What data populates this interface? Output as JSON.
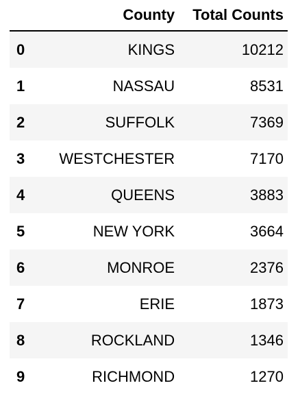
{
  "table": {
    "headers": {
      "index": "",
      "county": "County",
      "total": "Total Counts"
    },
    "rows": [
      {
        "index": "0",
        "county": "KINGS",
        "total": "10212"
      },
      {
        "index": "1",
        "county": "NASSAU",
        "total": "8531"
      },
      {
        "index": "2",
        "county": "SUFFOLK",
        "total": "7369"
      },
      {
        "index": "3",
        "county": "WESTCHESTER",
        "total": "7170"
      },
      {
        "index": "4",
        "county": "QUEENS",
        "total": "3883"
      },
      {
        "index": "5",
        "county": "NEW YORK",
        "total": "3664"
      },
      {
        "index": "6",
        "county": "MONROE",
        "total": "2376"
      },
      {
        "index": "7",
        "county": "ERIE",
        "total": "1873"
      },
      {
        "index": "8",
        "county": "ROCKLAND",
        "total": "1346"
      },
      {
        "index": "9",
        "county": "RICHMOND",
        "total": "1270"
      }
    ]
  }
}
